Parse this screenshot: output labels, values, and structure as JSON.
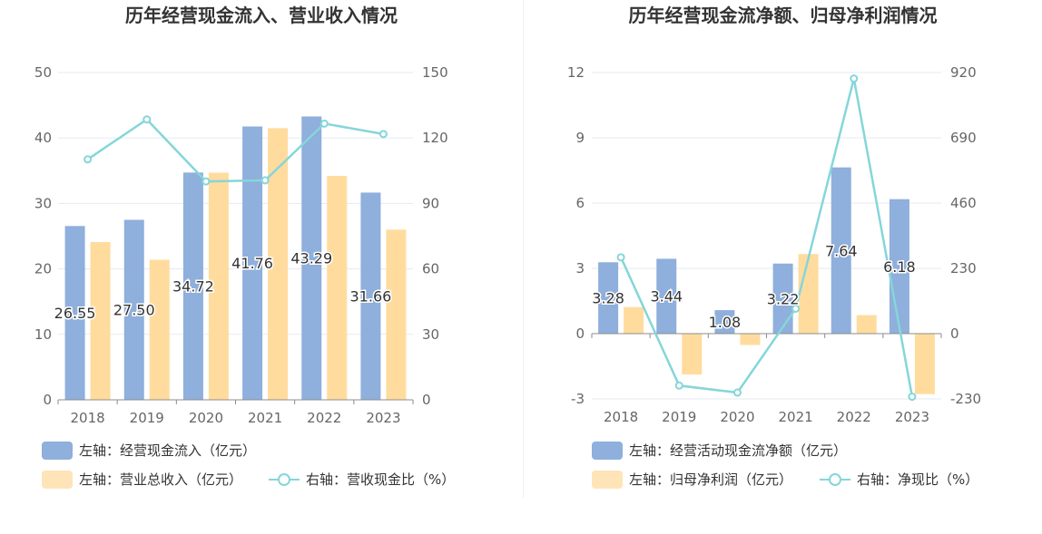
{
  "charts": [
    {
      "title": "历年经营现金流入、营业收入情况",
      "legend": [
        {
          "label": "左轴：经营现金流入（亿元）",
          "color": "#8fafdc",
          "kind": "bar"
        },
        {
          "label": "左轴：营业总收入（亿元）",
          "color": "#ffe4b8",
          "kind": "bar"
        },
        {
          "label": "右轴：营收现金比（%）",
          "color": "#85d6d9",
          "kind": "line"
        }
      ]
    },
    {
      "title": "历年经营现金流净额、归母净利润情况",
      "legend": [
        {
          "label": "左轴：经营活动现金流净额（亿元）",
          "color": "#8fafdc",
          "kind": "bar"
        },
        {
          "label": "左轴：归母净利润（亿元）",
          "color": "#ffe4b8",
          "kind": "bar"
        },
        {
          "label": "右轴：净现比（%）",
          "color": "#85d6d9",
          "kind": "line"
        }
      ]
    }
  ],
  "chart_data": [
    {
      "type": "bar",
      "title": "历年经营现金流入、营业收入情况",
      "categories": [
        "2018",
        "2019",
        "2020",
        "2021",
        "2022",
        "2023"
      ],
      "series": [
        {
          "name": "左轴：经营现金流入（亿元）",
          "axis": "left",
          "type": "bar",
          "color": "#8fafdc",
          "values": [
            26.55,
            27.5,
            34.72,
            41.76,
            43.29,
            31.66
          ],
          "labels": [
            "26.55",
            "27.50",
            "34.72",
            "41.76",
            "43.29",
            "31.66"
          ]
        },
        {
          "name": "左轴：营业总收入（亿元）",
          "axis": "left",
          "type": "bar",
          "color": "#ffdc9e",
          "values": [
            24.1,
            21.4,
            34.7,
            41.5,
            34.2,
            26.0
          ]
        },
        {
          "name": "右轴：营收现金比（%）",
          "axis": "right",
          "type": "line",
          "color": "#85d6d9",
          "values": [
            110.2,
            128.5,
            100.1,
            100.6,
            126.6,
            121.8
          ]
        }
      ],
      "ylim_left": [
        0,
        50
      ],
      "yticks_left": [
        "0",
        "10",
        "20",
        "30",
        "40",
        "50"
      ],
      "ylim_right": [
        0,
        150
      ],
      "yticks_right": [
        "0",
        "30",
        "60",
        "90",
        "120",
        "150"
      ],
      "grid": true,
      "legend_position": "bottom-left"
    },
    {
      "type": "bar",
      "title": "历年经营现金流净额、归母净利润情况",
      "categories": [
        "2018",
        "2019",
        "2020",
        "2021",
        "2022",
        "2023"
      ],
      "series": [
        {
          "name": "左轴：经营活动现金流净额（亿元）",
          "axis": "left",
          "type": "bar",
          "color": "#8fafdc",
          "values": [
            3.28,
            3.44,
            1.08,
            3.22,
            7.64,
            6.18
          ],
          "labels": [
            "3.28",
            "3.44",
            "1.08",
            "3.22",
            "7.64",
            "6.18"
          ]
        },
        {
          "name": "左轴：归母净利润（亿元）",
          "axis": "left",
          "type": "bar",
          "color": "#ffdc9e",
          "values": [
            1.22,
            -1.88,
            -0.52,
            3.66,
            0.85,
            -2.78
          ]
        },
        {
          "name": "右轴：净现比（%）",
          "axis": "right",
          "type": "line",
          "color": "#85d6d9",
          "values": [
            268.9,
            -183.0,
            -207.7,
            88.0,
            898.8,
            -222.3
          ]
        }
      ],
      "ylim_left": [
        -3,
        12
      ],
      "yticks_left": [
        "-3",
        "0",
        "3",
        "6",
        "9",
        "12"
      ],
      "ylim_right": [
        -230,
        920
      ],
      "yticks_right": [
        "-230",
        "0",
        "230",
        "460",
        "690",
        "920"
      ],
      "grid": true,
      "legend_position": "bottom-left"
    }
  ]
}
